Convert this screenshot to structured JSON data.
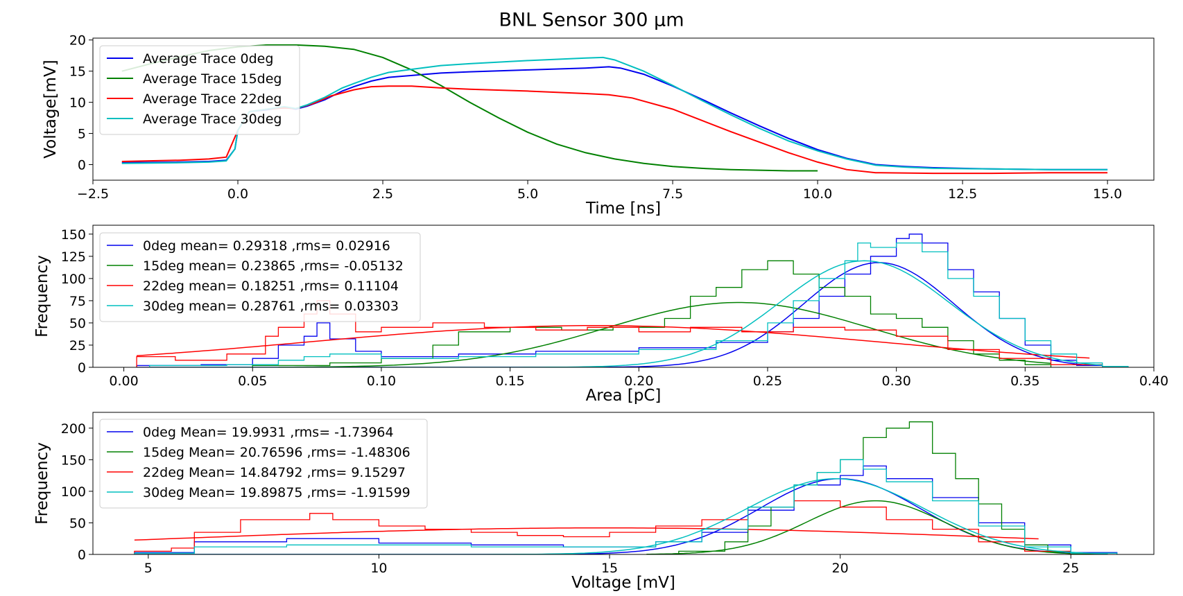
{
  "figure_title": "BNL Sensor 300 µm",
  "colors": {
    "0deg": "#0000ee",
    "15deg": "#008000",
    "22deg": "#ff0000",
    "30deg": "#00bfbf"
  },
  "chart_data": [
    {
      "type": "line",
      "title": "",
      "xlabel": "Time [ns]",
      "ylabel": "Voltage[mV]",
      "xlim": [
        -2.5,
        15.8
      ],
      "ylim": [
        -2.5,
        20.3
      ],
      "xticks": [
        -2.5,
        0.0,
        2.5,
        5.0,
        7.5,
        10.0,
        12.5,
        15.0
      ],
      "xtick_labels": [
        "−2.5",
        "0.0",
        "2.5",
        "5.0",
        "7.5",
        "10.0",
        "12.5",
        "15.0"
      ],
      "yticks": [
        0,
        5,
        10,
        15,
        20
      ],
      "ytick_labels": [
        "0",
        "5",
        "10",
        "15",
        "20"
      ],
      "grid": false,
      "legend_position": "top-left",
      "series": [
        {
          "name": "Average Trace 0deg",
          "color": "#0000ee",
          "x": [
            -2,
            -1,
            -0.5,
            -0.2,
            -0.05,
            0,
            0.2,
            0.5,
            0.8,
            1.0,
            1.2,
            1.5,
            1.8,
            2.0,
            2.3,
            2.6,
            3.0,
            3.5,
            4.0,
            5.0,
            6.0,
            6.4,
            6.6,
            7.0,
            7.5,
            8.0,
            8.5,
            9.0,
            9.5,
            10.0,
            10.5,
            11.0,
            11.5,
            12.0,
            13.0,
            14.0,
            15.0
          ],
          "y": [
            0.3,
            0.4,
            0.5,
            0.7,
            2.5,
            5.5,
            8.5,
            8.8,
            9.2,
            8.9,
            9.4,
            10.4,
            11.8,
            12.5,
            13.4,
            14.0,
            14.3,
            14.7,
            14.9,
            15.2,
            15.5,
            15.7,
            15.5,
            14.5,
            12.6,
            10.5,
            8.3,
            6.2,
            4.2,
            2.4,
            1.0,
            0.0,
            -0.3,
            -0.5,
            -0.7,
            -0.8,
            -0.8
          ]
        },
        {
          "name": "Average Trace 15deg",
          "color": "#008000",
          "x": [
            -2,
            -1.5,
            -1,
            -0.5,
            0,
            0.5,
            1.0,
            1.5,
            2.0,
            2.5,
            3.0,
            3.5,
            4.0,
            4.5,
            5.0,
            5.5,
            6.0,
            6.5,
            7.0,
            7.5,
            8.0,
            8.5,
            9.0,
            9.5,
            10.0
          ],
          "y": [
            15.0,
            16.2,
            17.3,
            18.3,
            18.9,
            19.2,
            19.2,
            19.0,
            18.5,
            17.2,
            15.2,
            12.7,
            10.0,
            7.5,
            5.2,
            3.3,
            1.9,
            0.9,
            0.2,
            -0.3,
            -0.6,
            -0.8,
            -0.9,
            -1.0,
            -1.0
          ]
        },
        {
          "name": "Average Trace 22deg",
          "color": "#ff0000",
          "x": [
            -2,
            -1,
            -0.5,
            -0.2,
            0,
            0.2,
            0.5,
            0.8,
            1.0,
            1.3,
            1.6,
            2.0,
            2.3,
            2.6,
            3.0,
            3.5,
            4.0,
            5.0,
            6.0,
            6.4,
            6.8,
            7.5,
            8.0,
            8.5,
            9.0,
            9.5,
            10.0,
            10.5,
            11.0,
            12.0,
            13.0,
            14.0,
            15.0
          ],
          "y": [
            0.5,
            0.7,
            0.9,
            1.2,
            5.5,
            8.5,
            8.9,
            9.1,
            9.0,
            9.8,
            11.0,
            12.0,
            12.5,
            12.6,
            12.6,
            12.3,
            12.1,
            11.8,
            11.4,
            11.2,
            10.7,
            8.9,
            7.1,
            5.3,
            3.6,
            1.9,
            0.4,
            -0.8,
            -1.3,
            -1.4,
            -1.4,
            -1.3,
            -1.3
          ]
        },
        {
          "name": "Average Trace 30deg",
          "color": "#00bfbf",
          "x": [
            -2,
            -1,
            -0.5,
            -0.2,
            -0.05,
            0,
            0.2,
            0.5,
            0.8,
            1.0,
            1.2,
            1.5,
            1.8,
            2.0,
            2.3,
            2.6,
            3.0,
            3.5,
            4.0,
            5.0,
            6.0,
            6.3,
            6.5,
            7.0,
            7.5,
            8.0,
            8.5,
            9.0,
            9.5,
            10.0,
            10.5,
            11.0,
            11.5,
            12.0,
            13.0,
            14.0,
            15.0
          ],
          "y": [
            0.2,
            0.3,
            0.4,
            0.6,
            2.5,
            5.5,
            8.5,
            8.9,
            9.3,
            9.0,
            9.6,
            10.8,
            12.3,
            13.0,
            14.0,
            14.8,
            15.3,
            15.9,
            16.2,
            16.7,
            17.1,
            17.2,
            16.8,
            15.0,
            12.7,
            10.3,
            8.0,
            5.8,
            3.8,
            2.2,
            0.9,
            -0.1,
            -0.4,
            -0.6,
            -0.7,
            -0.8,
            -0.8
          ]
        }
      ]
    },
    {
      "type": "histogram",
      "title": "",
      "xlabel": "Area [pC]",
      "ylabel": "Frequency",
      "xlim": [
        -0.012,
        0.4
      ],
      "ylim": [
        0,
        160
      ],
      "xticks": [
        0.0,
        0.05,
        0.1,
        0.15,
        0.2,
        0.25,
        0.3,
        0.35,
        0.4
      ],
      "xtick_labels": [
        "0.00",
        "0.05",
        "0.10",
        "0.15",
        "0.20",
        "0.25",
        "0.30",
        "0.35",
        "0.40"
      ],
      "yticks": [
        0,
        25,
        50,
        75,
        100,
        125,
        150
      ],
      "ytick_labels": [
        "0",
        "25",
        "50",
        "75",
        "100",
        "125",
        "150"
      ],
      "grid": false,
      "legend_position": "top-left",
      "series": [
        {
          "name": "0deg mean= 0.29318 ,rms= 0.02916",
          "color": "#0000ee",
          "hist": {
            "x": [
              0.005,
              0.03,
              0.05,
              0.06,
              0.07,
              0.075,
              0.08,
              0.09,
              0.1,
              0.13,
              0.16,
              0.2,
              0.23,
              0.25,
              0.26,
              0.27,
              0.28,
              0.29,
              0.3,
              0.305,
              0.31,
              0.32,
              0.33,
              0.34,
              0.35,
              0.36,
              0.37
            ],
            "y": [
              2,
              3,
              10,
              25,
              35,
              50,
              32,
              18,
              12,
              15,
              18,
              22,
              28,
              40,
              55,
              80,
              105,
              125,
              145,
              150,
              140,
              110,
              85,
              55,
              25,
              8,
              2
            ]
          },
          "fit": {
            "mean": 0.29318,
            "sigma": 0.02916,
            "amp": 118,
            "range": [
              0.005,
              0.375
            ]
          }
        },
        {
          "name": "15deg mean= 0.23865 ,rms= -0.05132",
          "color": "#008000",
          "hist": {
            "x": [
              0.05,
              0.08,
              0.1,
              0.12,
              0.13,
              0.15,
              0.17,
              0.19,
              0.21,
              0.22,
              0.23,
              0.24,
              0.25,
              0.26,
              0.27,
              0.28,
              0.29,
              0.3,
              0.31,
              0.32,
              0.33,
              0.34,
              0.35
            ],
            "y": [
              2,
              5,
              10,
              25,
              40,
              45,
              42,
              45,
              55,
              80,
              90,
              110,
              120,
              105,
              90,
              80,
              60,
              55,
              45,
              30,
              15,
              8,
              3
            ]
          },
          "fit": {
            "mean": 0.23865,
            "sigma": 0.05132,
            "amp": 73,
            "range": [
              0.06,
              0.36
            ]
          }
        },
        {
          "name": "22deg mean= 0.18251 ,rms= 0.11104",
          "color": "#ff0000",
          "hist": {
            "x": [
              0.005,
              0.02,
              0.04,
              0.055,
              0.06,
              0.07,
              0.075,
              0.08,
              0.09,
              0.1,
              0.12,
              0.14,
              0.16,
              0.18,
              0.2,
              0.22,
              0.24,
              0.26,
              0.28,
              0.3,
              0.32,
              0.34,
              0.36
            ],
            "y": [
              12,
              8,
              15,
              35,
              45,
              60,
              75,
              60,
              40,
              45,
              50,
              45,
              42,
              45,
              40,
              45,
              40,
              45,
              42,
              35,
              20,
              10,
              3
            ]
          },
          "fit": {
            "mean": 0.18251,
            "sigma": 0.11104,
            "amp": 47,
            "range": [
              0.005,
              0.375
            ]
          }
        },
        {
          "name": "30deg mean= 0.28761 ,rms= 0.03303",
          "color": "#00bfbf",
          "hist": {
            "x": [
              0.01,
              0.04,
              0.06,
              0.07,
              0.08,
              0.1,
              0.13,
              0.16,
              0.2,
              0.23,
              0.25,
              0.26,
              0.27,
              0.28,
              0.285,
              0.29,
              0.3,
              0.31,
              0.32,
              0.33,
              0.34,
              0.35,
              0.36,
              0.37,
              0.38
            ],
            "y": [
              2,
              3,
              8,
              12,
              15,
              10,
              12,
              15,
              20,
              30,
              50,
              75,
              100,
              120,
              140,
              135,
              140,
              130,
              100,
              80,
              55,
              30,
              15,
              5,
              1
            ]
          },
          "fit": {
            "mean": 0.28761,
            "sigma": 0.03303,
            "amp": 120,
            "range": [
              0.01,
              0.38
            ]
          }
        }
      ]
    },
    {
      "type": "histogram",
      "title": "",
      "xlabel": "Voltage [mV]",
      "ylabel": "Frequency",
      "xlim": [
        3.8,
        26.8
      ],
      "ylim": [
        0,
        225
      ],
      "xticks": [
        5,
        10,
        15,
        20,
        25
      ],
      "xtick_labels": [
        "5",
        "10",
        "15",
        "20",
        "25"
      ],
      "yticks": [
        0,
        50,
        100,
        150,
        200
      ],
      "ytick_labels": [
        "0",
        "50",
        "100",
        "150",
        "200"
      ],
      "grid": false,
      "legend_position": "top-left",
      "series": [
        {
          "name": "0deg Mean= 19.9931 ,rms= -1.73964",
          "color": "#0000ee",
          "hist": {
            "x": [
              4.7,
              6,
              8,
              10,
              12,
              14,
              16,
              17,
              18,
              19,
              20,
              20.5,
              21,
              22,
              23,
              24,
              25
            ],
            "y": [
              3,
              20,
              25,
              18,
              15,
              12,
              20,
              35,
              70,
              110,
              125,
              140,
              120,
              90,
              50,
              15,
              3
            ]
          },
          "fit": {
            "mean": 19.9931,
            "sigma": 1.73964,
            "amp": 120,
            "range": [
              4.7,
              25.8
            ]
          }
        },
        {
          "name": "15deg Mean= 20.76596 ,rms= -1.48306",
          "color": "#008000",
          "hist": {
            "x": [
              16.5,
              17.5,
              18,
              18.5,
              19,
              19.5,
              20,
              20.5,
              21,
              21.5,
              22,
              22.5,
              23,
              23.5,
              24,
              24.5
            ],
            "y": [
              5,
              20,
              45,
              75,
              110,
              130,
              150,
              185,
              200,
              210,
              160,
              120,
              80,
              40,
              15,
              4
            ]
          },
          "fit": {
            "mean": 20.76596,
            "sigma": 1.48306,
            "amp": 85,
            "range": [
              15.8,
              25.8
            ]
          }
        },
        {
          "name": "22deg Mean= 14.84792 ,rms= 9.15297",
          "color": "#ff0000",
          "hist": {
            "x": [
              4.7,
              5.5,
              6,
              7,
              8,
              8.5,
              9,
              10,
              11,
              12,
              13,
              14,
              15,
              16,
              17,
              18,
              19,
              20,
              21,
              22,
              23,
              24
            ],
            "y": [
              5,
              10,
              35,
              55,
              55,
              65,
              55,
              45,
              40,
              35,
              30,
              28,
              35,
              45,
              55,
              75,
              85,
              75,
              55,
              40,
              20,
              5
            ]
          },
          "fit": {
            "mean": 14.84792,
            "sigma": 9.15297,
            "amp": 42,
            "range": [
              4.7,
              24.3
            ]
          }
        },
        {
          "name": "30deg Mean= 19.89875 ,rms= -1.91599",
          "color": "#00bfbf",
          "hist": {
            "x": [
              4.7,
              6,
              8,
              10,
              12,
              14,
              16,
              17,
              18,
              19,
              19.5,
              20,
              20.5,
              21,
              22,
              23,
              24,
              25
            ],
            "y": [
              2,
              12,
              15,
              15,
              12,
              12,
              20,
              40,
              75,
              110,
              130,
              150,
              135,
              115,
              85,
              45,
              12,
              2
            ]
          },
          "fit": {
            "mean": 19.89875,
            "sigma": 1.91599,
            "amp": 120,
            "range": [
              4.7,
              25.8
            ]
          }
        }
      ]
    }
  ]
}
